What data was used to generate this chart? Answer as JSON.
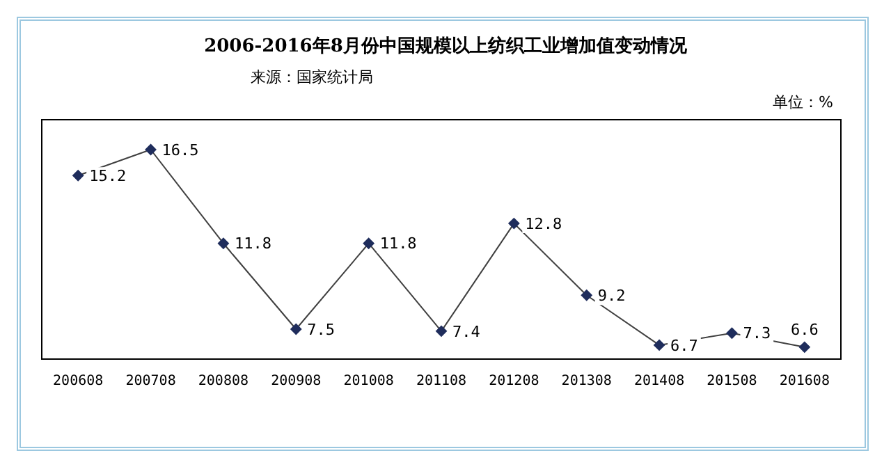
{
  "chart_data": {
    "type": "line",
    "title": "2006-2016年8月份中国规模以上纺织工业增加值变动情况",
    "annotations": [
      "来源：国家统计局",
      "单位：%"
    ],
    "categories": [
      "200608",
      "200708",
      "200808",
      "200908",
      "201008",
      "201108",
      "201208",
      "201308",
      "201408",
      "201508",
      "201608"
    ],
    "series": [
      {
        "color": "#404040",
        "values": [
          15.2,
          16.5,
          11.8,
          7.5,
          11.8,
          7.4,
          12.8,
          9.2,
          6.7,
          7.3,
          6.6
        ]
      }
    ],
    "marker": "diamond",
    "data_labels": true,
    "grid": false,
    "legend": false,
    "tick_labels": "x",
    "line_style": "solid"
  }
}
